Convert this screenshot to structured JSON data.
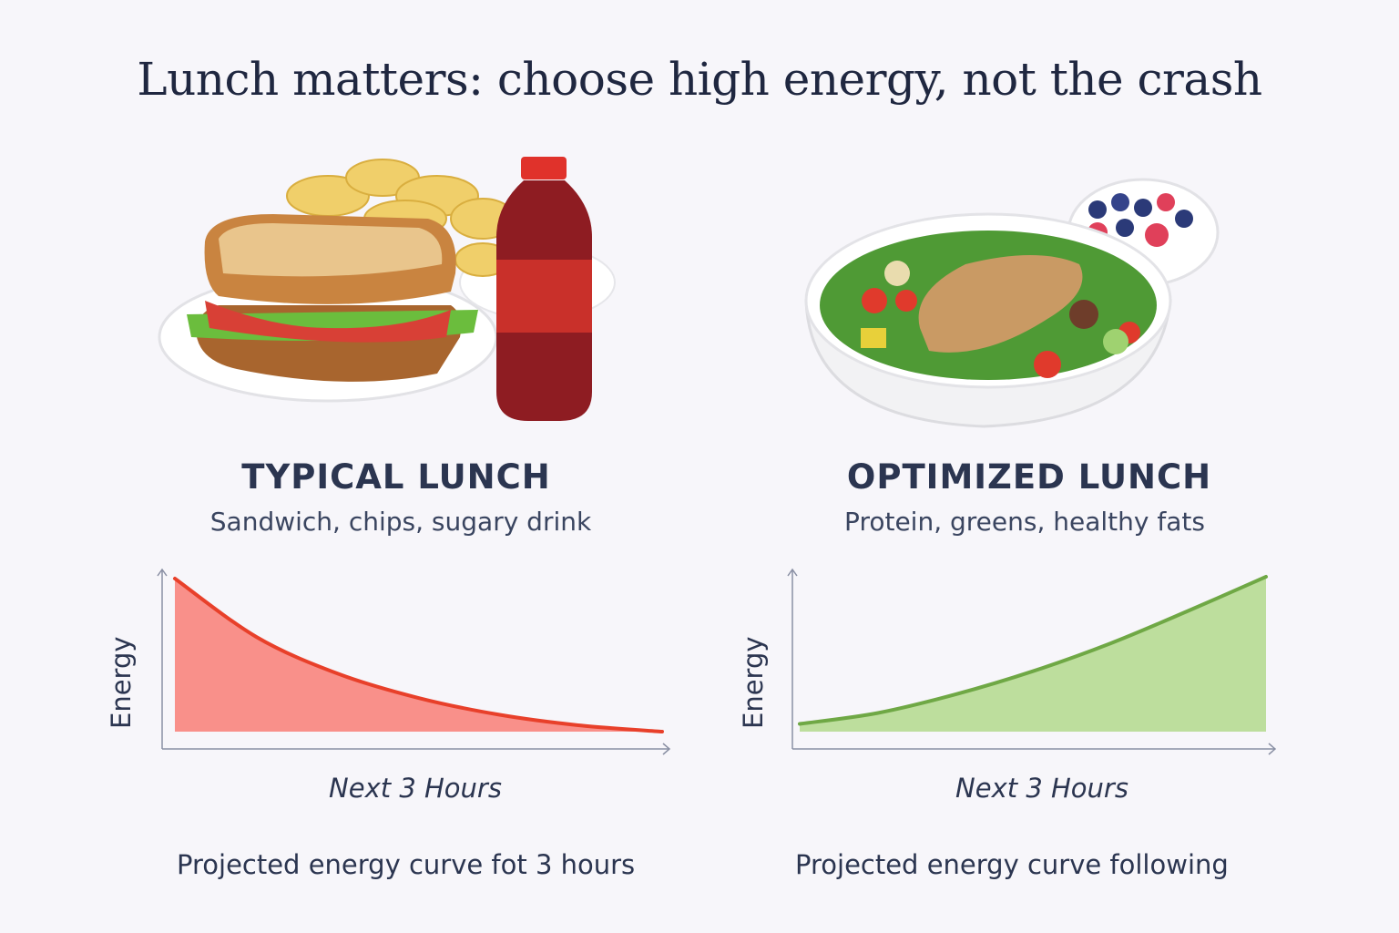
{
  "title": "Lunch matters: choose high energy, not the crash",
  "left": {
    "heading": "TYPICAL LUNCH",
    "subtitle": "Sandwich, chips, sugary drink",
    "caption": "Projected energy curve fot 3 hours",
    "image": "sandwich-chips-soda"
  },
  "right": {
    "heading": "OPTIMIZED LUNCH",
    "subtitle": "Protein, greens, healthy fats",
    "caption": "Projected energy curve following",
    "image": "chicken-salad-berries"
  },
  "chart_data": [
    {
      "type": "area",
      "xlabel": "Next 3 Hours",
      "ylabel": "Energy",
      "x": [
        0,
        0.5,
        1,
        1.5,
        2,
        2.5,
        3
      ],
      "values": [
        1.0,
        0.62,
        0.38,
        0.22,
        0.11,
        0.04,
        0.0
      ],
      "ylim": [
        0,
        1
      ],
      "grid": false,
      "color": "#e8402a",
      "fill": "#f98a84"
    },
    {
      "type": "area",
      "xlabel": "Next 3 Hours",
      "ylabel": "Energy",
      "x": [
        0,
        0.5,
        1,
        1.5,
        2,
        2.5,
        3
      ],
      "values": [
        0.05,
        0.12,
        0.24,
        0.39,
        0.57,
        0.78,
        1.0
      ],
      "ylim": [
        0,
        1
      ],
      "grid": false,
      "color": "#6fa845",
      "fill": "#b9dc98"
    }
  ]
}
